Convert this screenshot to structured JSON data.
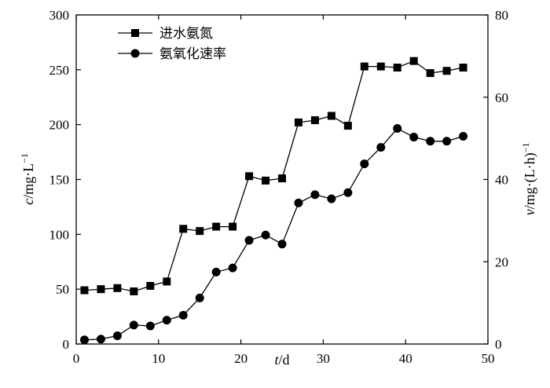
{
  "chart_data": {
    "type": "line",
    "x": [
      1,
      3,
      5,
      7,
      9,
      11,
      13,
      15,
      17,
      19,
      21,
      23,
      25,
      27,
      29,
      31,
      33,
      35,
      37,
      39,
      41,
      43,
      45,
      47
    ],
    "series": [
      {
        "name": "进水氨氮",
        "axis": "left",
        "marker": "square",
        "values": [
          49,
          50,
          51,
          48,
          53,
          57,
          105,
          103,
          107,
          107,
          153,
          149,
          151,
          202,
          204,
          208,
          199,
          253,
          253,
          252,
          258,
          247,
          249,
          252
        ]
      },
      {
        "name": "氨氧化速率",
        "axis": "right",
        "marker": "circle",
        "values": [
          1,
          1.2,
          2,
          4.6,
          4.4,
          5.8,
          7,
          11.2,
          17.5,
          18.5,
          25.2,
          26.5,
          24.3,
          34.3,
          36.3,
          35.3,
          36.8,
          43.8,
          47.8,
          52.4,
          50.3,
          49.3,
          49.3,
          50.5
        ]
      }
    ],
    "xlabel": {
      "var": "t",
      "unit": "/d"
    },
    "ylabel_left": {
      "var": "c",
      "unit": "/mg·L",
      "sup": "−1"
    },
    "ylabel_right": {
      "var": "v",
      "unit": "/mg·(L·h)",
      "sup": "−1"
    },
    "xlim": [
      0,
      50
    ],
    "ylim_left": [
      0,
      300
    ],
    "ylim_right": [
      0,
      80
    ],
    "xticks": [
      0,
      10,
      20,
      30,
      40,
      50
    ],
    "yticks_left": [
      0,
      50,
      100,
      150,
      200,
      250,
      300
    ],
    "yticks_right": [
      0,
      20,
      40,
      60,
      80
    ],
    "grid": false,
    "legend_position": "top-left"
  }
}
